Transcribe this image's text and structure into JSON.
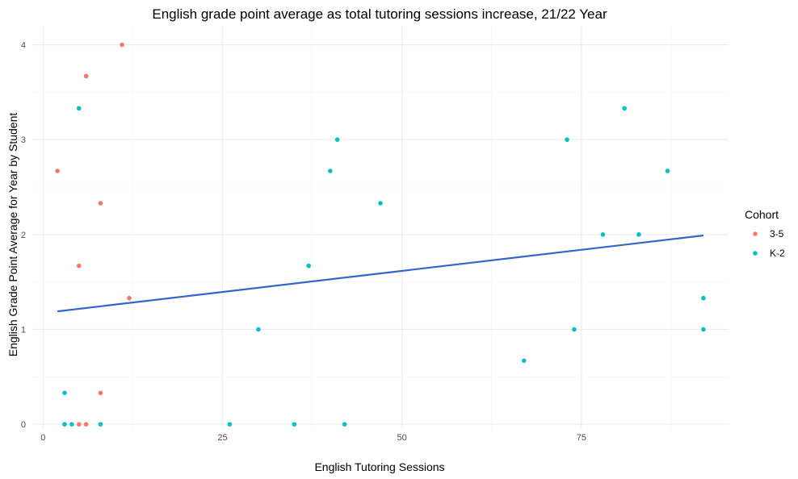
{
  "chart_data": {
    "type": "scatter",
    "title": "English grade point average as total tutoring sessions increase, 21/22 Year",
    "xlabel": "English Tutoring Sessions",
    "ylabel": "English Grade Point Average for Year by Student",
    "xlim": [
      -1.5,
      95.5
    ],
    "ylim": [
      -0.05,
      4.2
    ],
    "x_ticks": [
      0,
      25,
      50,
      75
    ],
    "y_ticks": [
      0,
      1,
      2,
      3,
      4
    ],
    "grid": true,
    "legend": {
      "title": "Cohort",
      "position": "right"
    },
    "series": [
      {
        "name": "3-5",
        "color": "#F8766D",
        "points": [
          {
            "x": 2,
            "y": 2.67
          },
          {
            "x": 5,
            "y": 1.67
          },
          {
            "x": 5,
            "y": 0
          },
          {
            "x": 6,
            "y": 3.67
          },
          {
            "x": 6,
            "y": 0
          },
          {
            "x": 8,
            "y": 2.33
          },
          {
            "x": 8,
            "y": 0.33
          },
          {
            "x": 11,
            "y": 4
          },
          {
            "x": 12,
            "y": 1.33
          }
        ]
      },
      {
        "name": "K-2",
        "color": "#00BFC4",
        "points": [
          {
            "x": 3,
            "y": 0.33
          },
          {
            "x": 3,
            "y": 0
          },
          {
            "x": 4,
            "y": 0
          },
          {
            "x": 5,
            "y": 3.33
          },
          {
            "x": 8,
            "y": 0
          },
          {
            "x": 26,
            "y": 0
          },
          {
            "x": 30,
            "y": 1
          },
          {
            "x": 35,
            "y": 0
          },
          {
            "x": 37,
            "y": 1.67
          },
          {
            "x": 40,
            "y": 2.67
          },
          {
            "x": 41,
            "y": 3
          },
          {
            "x": 42,
            "y": 0
          },
          {
            "x": 47,
            "y": 2.33
          },
          {
            "x": 67,
            "y": 0.67
          },
          {
            "x": 73,
            "y": 3
          },
          {
            "x": 74,
            "y": 1
          },
          {
            "x": 78,
            "y": 2
          },
          {
            "x": 81,
            "y": 3.33
          },
          {
            "x": 83,
            "y": 2
          },
          {
            "x": 87,
            "y": 2.67
          },
          {
            "x": 92,
            "y": 1.33
          },
          {
            "x": 92,
            "y": 1
          }
        ]
      }
    ],
    "trend_line": {
      "color": "#3366CC",
      "x": [
        2,
        92
      ],
      "y": [
        1.19,
        1.99
      ]
    }
  }
}
